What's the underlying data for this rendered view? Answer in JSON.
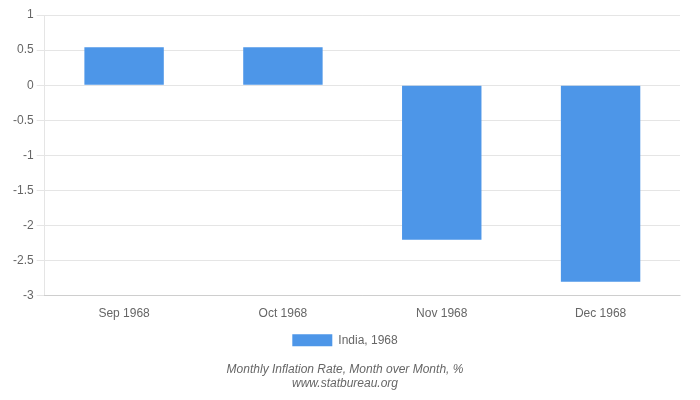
{
  "chart_data": {
    "type": "bar",
    "categories": [
      "Sep 1968",
      "Oct 1968",
      "Nov 1968",
      "Dec 1968"
    ],
    "series": [
      {
        "name": "India, 1968",
        "color": "#4d96e8",
        "values": [
          0.54,
          0.54,
          -2.2,
          -2.8
        ]
      }
    ],
    "ylim": [
      -3,
      1
    ],
    "yticks": [
      -3,
      -2.5,
      -2,
      -1.5,
      -1,
      -0.5,
      0,
      0.5,
      1
    ],
    "grid": true,
    "legend": "bottom",
    "annotations": [
      "Monthly Inflation Rate, Month over Month, %",
      "www.statbureau.org"
    ]
  }
}
